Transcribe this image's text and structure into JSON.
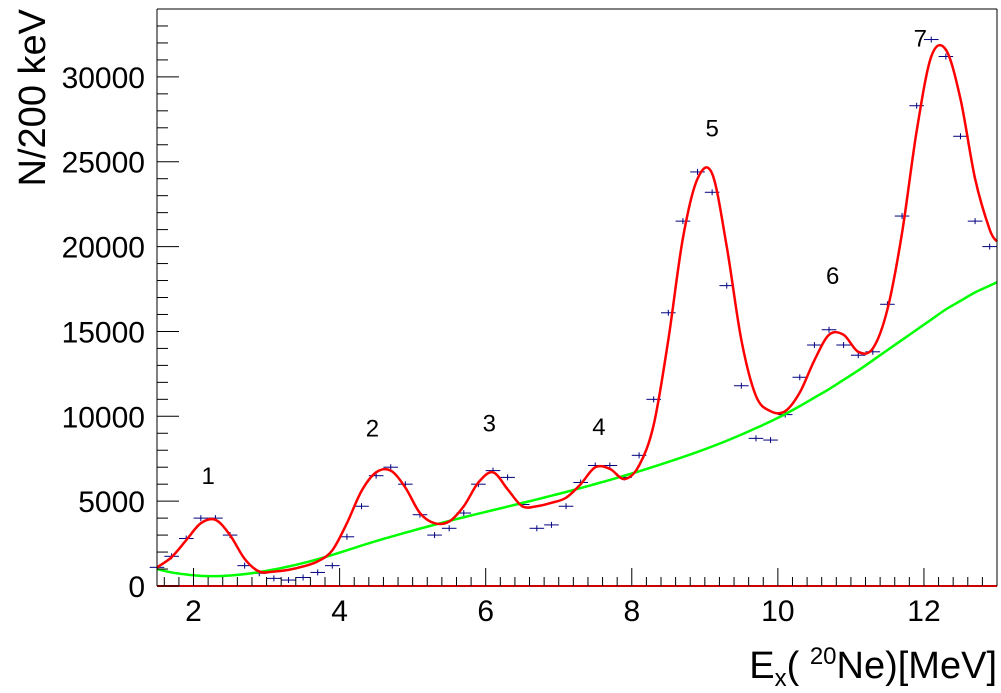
{
  "chart_data": {
    "type": "line",
    "xlabel": {
      "main": "E",
      "sub": "x",
      "open": "( ",
      "sup": "20",
      "rest": "Ne)[MeV]"
    },
    "ylabel": "N/200 keV",
    "xlim": [
      1.5,
      13.0
    ],
    "ylim": [
      0,
      34000
    ],
    "x_ticks": [
      2,
      4,
      6,
      8,
      10,
      12
    ],
    "y_ticks": [
      0,
      5000,
      10000,
      15000,
      20000,
      25000,
      30000
    ],
    "grid": false,
    "colors": {
      "total_fit": "#ff0000",
      "background_fit": "#00ff00",
      "data_points": "#000080",
      "frame": "#000000",
      "baseline": "#cc0000"
    },
    "peak_labels": [
      {
        "text": "1",
        "x": 2.2,
        "y": 6000
      },
      {
        "text": "2",
        "x": 4.45,
        "y": 8800
      },
      {
        "text": "3",
        "x": 6.05,
        "y": 9100
      },
      {
        "text": "4",
        "x": 7.55,
        "y": 8900
      },
      {
        "text": "5",
        "x": 9.1,
        "y": 26500
      },
      {
        "text": "6",
        "x": 10.75,
        "y": 17800
      },
      {
        "text": "7",
        "x": 11.95,
        "y": 31800
      }
    ],
    "data_points": {
      "x": [
        1.5,
        1.7,
        1.9,
        2.1,
        2.3,
        2.5,
        2.7,
        2.9,
        3.1,
        3.3,
        3.5,
        3.7,
        3.9,
        4.1,
        4.3,
        4.5,
        4.7,
        4.9,
        5.1,
        5.3,
        5.5,
        5.7,
        5.9,
        6.1,
        6.3,
        6.5,
        6.7,
        6.9,
        7.1,
        7.3,
        7.5,
        7.7,
        7.9,
        8.1,
        8.3,
        8.5,
        8.7,
        8.9,
        9.1,
        9.3,
        9.5,
        9.7,
        9.9,
        10.1,
        10.3,
        10.5,
        10.7,
        10.9,
        11.1,
        11.3,
        11.5,
        11.7,
        11.9,
        12.1,
        12.3,
        12.5,
        12.7,
        12.9
      ],
      "y": [
        1100,
        1750,
        2800,
        4000,
        4000,
        3000,
        1200,
        750,
        450,
        350,
        500,
        800,
        1200,
        2900,
        4700,
        6500,
        7000,
        6000,
        4200,
        3000,
        3400,
        4300,
        6000,
        6800,
        6400,
        4800,
        3400,
        3600,
        4700,
        6100,
        7100,
        7100,
        6400,
        7700,
        11000,
        16100,
        21500,
        24400,
        23200,
        17700,
        11800,
        8700,
        8600,
        10100,
        12300,
        14200,
        15100,
        14200,
        13600,
        13800,
        16600,
        21800,
        28300,
        32200,
        31200,
        26500,
        21500,
        20000
      ]
    },
    "series": [
      {
        "x": [
          1.5,
          1.7,
          1.9,
          2.1,
          2.3,
          2.5,
          2.7,
          2.9,
          3.1,
          3.3,
          3.5,
          3.7,
          3.9,
          4.1,
          4.3,
          4.5,
          4.7,
          4.9,
          5.1,
          5.3,
          5.5,
          5.7,
          5.9,
          6.1,
          6.3,
          6.5,
          6.7,
          6.9,
          7.1,
          7.3,
          7.5,
          7.7,
          7.9,
          8.1,
          8.3,
          8.5,
          8.7,
          8.9,
          9.1,
          9.3,
          9.5,
          9.7,
          9.9,
          10.1,
          10.3,
          10.5,
          10.7,
          10.9,
          11.1,
          11.3,
          11.5,
          11.7,
          11.9,
          12.1,
          12.3,
          12.5,
          12.7,
          12.9,
          13.0
        ],
        "values": [
          1100,
          1700,
          2700,
          3700,
          3900,
          3000,
          1600,
          850,
          850,
          950,
          1150,
          1450,
          2100,
          3700,
          5600,
          6700,
          6800,
          5800,
          4300,
          3700,
          3800,
          4700,
          6100,
          6700,
          5700,
          4700,
          4700,
          4900,
          5200,
          6000,
          7000,
          6900,
          6300,
          7100,
          9500,
          14500,
          20500,
          24000,
          24300,
          20000,
          14500,
          11200,
          10300,
          10300,
          11400,
          13300,
          14800,
          14800,
          13800,
          14000,
          16300,
          20800,
          26800,
          31200,
          31600,
          28700,
          24000,
          21000,
          20300
        ]
      },
      {
        "x": [
          1.5,
          1.7,
          1.9,
          2.1,
          2.3,
          2.5,
          2.7,
          2.9,
          3.1,
          3.3,
          3.5,
          3.7,
          3.9,
          4.1,
          4.3,
          4.5,
          4.7,
          4.9,
          5.1,
          5.3,
          5.5,
          5.7,
          5.9,
          6.1,
          6.3,
          6.5,
          6.7,
          6.9,
          7.1,
          7.3,
          7.5,
          7.7,
          7.9,
          8.1,
          8.3,
          8.5,
          8.7,
          8.9,
          9.1,
          9.3,
          9.5,
          9.7,
          9.9,
          10.1,
          10.3,
          10.5,
          10.7,
          10.9,
          11.1,
          11.3,
          11.5,
          11.7,
          11.9,
          12.1,
          12.3,
          12.5,
          12.7,
          12.9,
          13.0
        ],
        "values": [
          1000,
          800,
          680,
          600,
          580,
          620,
          700,
          820,
          970,
          1150,
          1350,
          1580,
          1830,
          2100,
          2380,
          2650,
          2900,
          3140,
          3380,
          3610,
          3830,
          4050,
          4260,
          4470,
          4680,
          4890,
          5100,
          5320,
          5540,
          5770,
          6010,
          6250,
          6500,
          6760,
          7030,
          7310,
          7600,
          7900,
          8220,
          8560,
          8920,
          9300,
          9700,
          10130,
          10600,
          11100,
          11600,
          12150,
          12700,
          13300,
          13900,
          14500,
          15100,
          15700,
          16300,
          16800,
          17300,
          17700,
          17900
        ]
      }
    ]
  }
}
